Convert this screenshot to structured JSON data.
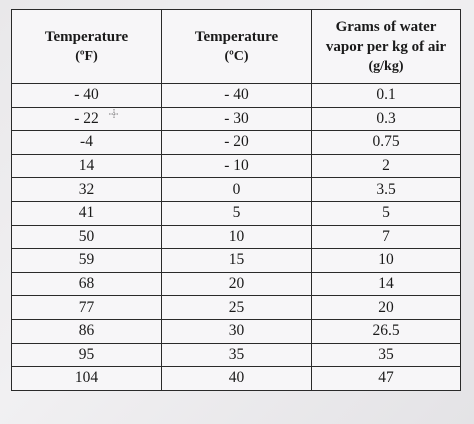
{
  "table": {
    "headers": [
      {
        "line1": "Temperature",
        "line2": "",
        "unit": "(ºF)"
      },
      {
        "line1": "Temperature",
        "line2": "",
        "unit": "(ºC)"
      },
      {
        "line1": "Grams of water",
        "line2": "vapor per kg of air",
        "unit": "(g/kg)"
      }
    ],
    "rows": [
      [
        "- 40",
        "- 40",
        "0.1"
      ],
      [
        "- 22",
        "- 30",
        "0.3"
      ],
      [
        "-4",
        "- 20",
        "0.75"
      ],
      [
        "14",
        "- 10",
        "2"
      ],
      [
        "32",
        "0",
        "3.5"
      ],
      [
        "41",
        "5",
        "5"
      ],
      [
        "50",
        "10",
        "7"
      ],
      [
        "59",
        "15",
        "10"
      ],
      [
        "68",
        "20",
        "14"
      ],
      [
        "77",
        "25",
        "20"
      ],
      [
        "86",
        "30",
        "26.5"
      ],
      [
        "95",
        "35",
        "35"
      ],
      [
        "104",
        "40",
        "47"
      ]
    ]
  },
  "cursor": {
    "icon": "crosshair-cursor-icon"
  }
}
